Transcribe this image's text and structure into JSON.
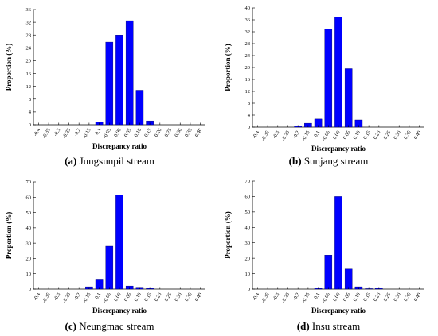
{
  "chart_data": [
    {
      "type": "bar",
      "panel_id": "a",
      "caption_letter": "(a)",
      "caption_text": "Jungsunpil stream",
      "xlabel": "Discrepancy ratio",
      "ylabel": "Proportion (%)",
      "ylim": [
        0,
        36
      ],
      "yticks": [
        0,
        4,
        8,
        12,
        16,
        20,
        24,
        28,
        32,
        36
      ],
      "categories": [
        "-0.4",
        "-0.35",
        "-0.3",
        "-0.25",
        "-0.2",
        "-0.15",
        "-0.1",
        "-0.05",
        "0.00",
        "0.05",
        "0.10",
        "0.15",
        "0.20",
        "0.25",
        "0.30",
        "0.35",
        "0.40"
      ],
      "values": [
        0,
        0,
        0,
        0,
        0,
        0,
        0.9,
        25.8,
        28.0,
        32.5,
        10.8,
        1.2,
        0,
        0,
        0,
        0,
        0
      ]
    },
    {
      "type": "bar",
      "panel_id": "b",
      "caption_letter": "(b)",
      "caption_text": "Sunjang stream",
      "xlabel": "Discrepancy ratio",
      "ylabel": "Proportion (%)",
      "ylim": [
        0,
        40
      ],
      "yticks": [
        0,
        4,
        8,
        12,
        16,
        20,
        24,
        28,
        32,
        36,
        40
      ],
      "categories": [
        "-0.4",
        "-0.35",
        "-0.3",
        "-0.25",
        "-0.2",
        "-0.15",
        "-0.1",
        "-0.05",
        "0.00",
        "0.05",
        "0.10",
        "0.15",
        "0.20",
        "0.25",
        "0.30",
        "0.35",
        "0.40"
      ],
      "values": [
        0,
        0,
        0,
        0,
        0.4,
        1.3,
        2.7,
        33.0,
        37.0,
        19.6,
        2.4,
        0,
        0,
        0,
        0,
        0,
        0
      ]
    },
    {
      "type": "bar",
      "panel_id": "c",
      "caption_letter": "(c)",
      "caption_text": "Neungmac stream",
      "xlabel": "Discrepancy ratio",
      "ylabel": "Proportion (%)",
      "ylim": [
        0,
        70
      ],
      "yticks": [
        0,
        10,
        20,
        30,
        40,
        50,
        60,
        70
      ],
      "categories": [
        "-0.4",
        "-0.35",
        "-0.3",
        "-0.25",
        "-0.2",
        "-0.15",
        "-0.1",
        "-0.05",
        "0.00",
        "0.05",
        "0.10",
        "0.15",
        "0.20",
        "0.25",
        "0.30",
        "0.35",
        "0.40"
      ],
      "values": [
        0,
        0,
        0,
        0,
        0,
        1.5,
        6.5,
        28.0,
        61.5,
        2.0,
        1.2,
        0.5,
        0,
        0,
        0,
        0,
        0
      ]
    },
    {
      "type": "bar",
      "panel_id": "d",
      "caption_letter": "(d)",
      "caption_text": "Insu stream",
      "xlabel": "Discrepancy ratio",
      "ylabel": "Proportion (%)",
      "ylim": [
        0,
        70
      ],
      "yticks": [
        0,
        10,
        20,
        30,
        40,
        50,
        60,
        70
      ],
      "categories": [
        "-0.4",
        "-0.35",
        "-0.3",
        "-0.25",
        "-0.2",
        "-0.15",
        "-0.1",
        "-0.05",
        "0.00",
        "0.05",
        "0.10",
        "0.15",
        "0.20",
        "0.25",
        "0.30",
        "0.35",
        "0.40"
      ],
      "values": [
        0,
        0,
        0,
        0,
        0,
        0,
        0.5,
        22.0,
        60.0,
        13.0,
        1.5,
        0.3,
        0.5,
        0,
        0,
        0,
        0
      ]
    }
  ],
  "colors": {
    "bar": "#0000ff"
  }
}
